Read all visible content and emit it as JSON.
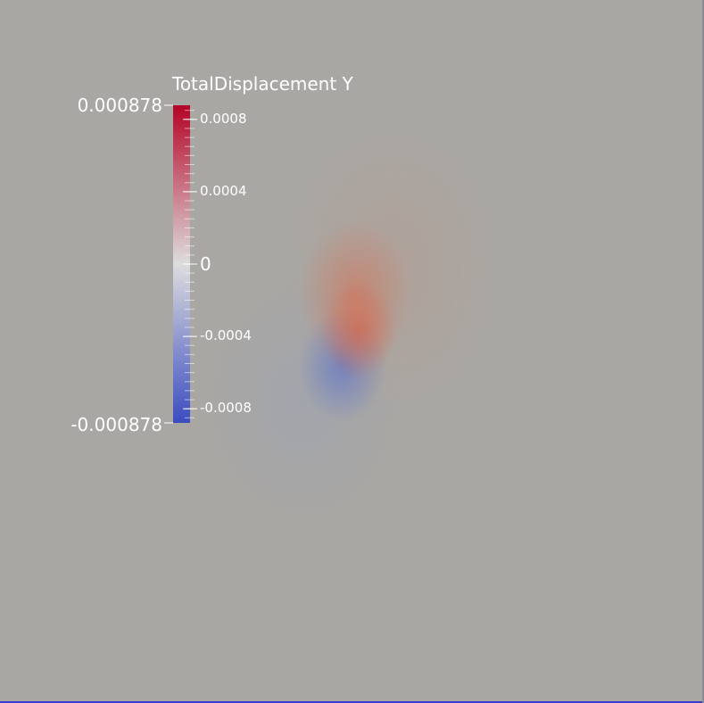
{
  "colorbar": {
    "title": "TotalDisplacement Y",
    "max_label": "0.000878",
    "min_label": "-0.000878",
    "range": [
      -0.000878,
      0.000878
    ],
    "colormap": "Cool to Warm",
    "colors": {
      "low": "#3b4cc0",
      "mid": "#dddddd",
      "high": "#b40426"
    },
    "tick_labels": [
      {
        "value": 0.0008,
        "text": "0.0008"
      },
      {
        "value": 0.0004,
        "text": "0.0004"
      },
      {
        "value": 0,
        "text": "0"
      },
      {
        "value": -0.0004,
        "text": "-0.0004"
      },
      {
        "value": -0.0008,
        "text": "-0.0008"
      }
    ]
  },
  "scene": {
    "background": "#a9a7a3",
    "field": "TotalDisplacement Y"
  }
}
